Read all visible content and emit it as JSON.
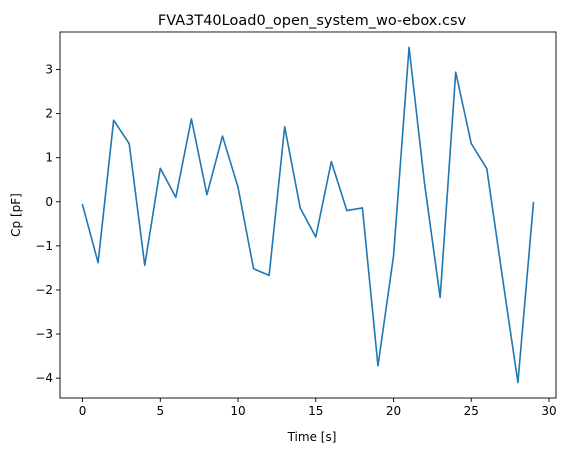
{
  "chart_data": {
    "type": "line",
    "title": "FVA3T40Load0_open_system_wo-ebox.csv",
    "xlabel": "Time [s]",
    "ylabel": "Cp [pF]",
    "xlim": [
      -1.45,
      30.45
    ],
    "ylim": [
      -4.45,
      3.85
    ],
    "xticks": [
      0,
      5,
      10,
      15,
      20,
      25,
      30
    ],
    "yticks": [
      -4,
      -3,
      -2,
      -1,
      0,
      1,
      2,
      3
    ],
    "grid": false,
    "line_color": "#1f77b4",
    "series": [
      {
        "x": [
          0,
          1,
          2,
          3,
          4,
          5,
          6,
          7,
          8,
          9,
          10,
          11,
          12,
          13,
          14,
          15,
          16,
          17,
          18,
          19,
          20,
          21,
          22,
          23,
          24,
          25,
          26,
          27,
          28,
          29
        ],
        "y": [
          -0.07,
          -1.38,
          1.85,
          1.32,
          -1.44,
          0.76,
          0.1,
          1.88,
          0.16,
          1.49,
          0.33,
          -1.52,
          -1.67,
          1.7,
          -0.14,
          -0.8,
          0.91,
          -0.2,
          -0.14,
          -3.72,
          -1.23,
          3.5,
          0.4,
          -2.17,
          2.94,
          1.32,
          0.75,
          -1.7,
          -4.1,
          -0.02
        ]
      }
    ]
  }
}
